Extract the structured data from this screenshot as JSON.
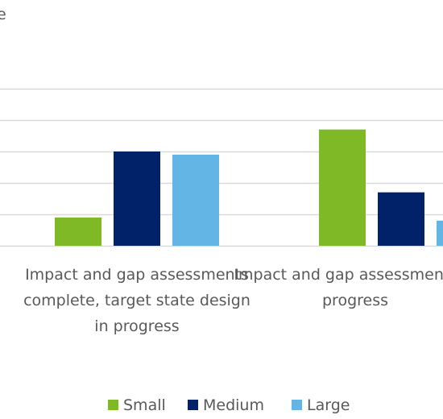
{
  "chart_data": {
    "type": "bar",
    "title_fragment": "e",
    "categories": [
      [
        "Impact and gap assessments",
        "complete, target state design",
        "in progress"
      ],
      [
        "Impact and gap assessments in",
        "progress"
      ]
    ],
    "series": [
      {
        "name": "Small",
        "color": "#7FBA26",
        "values": [
          9,
          37
        ]
      },
      {
        "name": "Medium",
        "color": "#012169",
        "values": [
          30,
          17
        ]
      },
      {
        "name": "Large",
        "color": "#62B5E5",
        "values": [
          29,
          8
        ]
      }
    ],
    "ylim": [
      0,
      50
    ],
    "grid": true,
    "gridline_step": 10,
    "legend_position": "bottom"
  }
}
